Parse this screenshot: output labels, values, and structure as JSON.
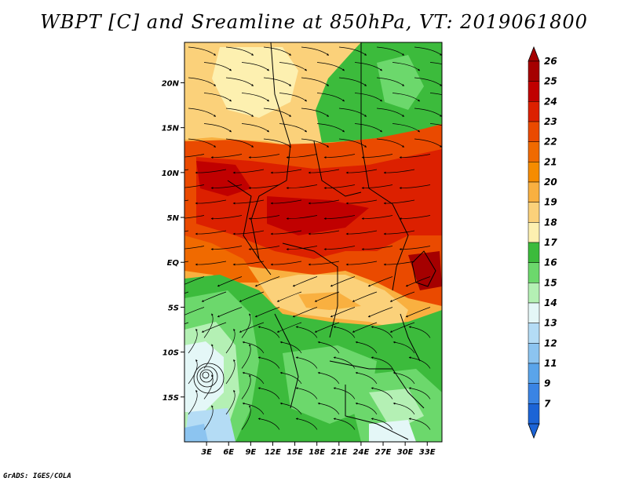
{
  "title": "WBPT [C] and Sreamline at 850hPa, VT: 2019061800",
  "footer": "GrADS: IGES/COLA",
  "map": {
    "lon_range": [
      0,
      35
    ],
    "lat_range": [
      -20,
      24.5
    ],
    "lat_ticks": [
      "20N",
      "15N",
      "10N",
      "5N",
      "EQ",
      "5S",
      "10S",
      "15S"
    ],
    "lat_values": [
      20,
      15,
      10,
      5,
      0,
      -5,
      -10,
      -15
    ],
    "lon_ticks": [
      "3E",
      "6E",
      "9E",
      "12E",
      "15E",
      "18E",
      "21E",
      "24E",
      "27E",
      "30E",
      "33E"
    ],
    "lon_values": [
      3,
      6,
      9,
      12,
      15,
      18,
      21,
      24,
      27,
      30,
      33
    ],
    "regions": [
      {
        "name": "northwest-cool",
        "value": 19
      },
      {
        "name": "northeast-green",
        "value": 17
      },
      {
        "name": "central-warm-band",
        "value": 24
      },
      {
        "name": "south-green",
        "value": 17
      },
      {
        "name": "southwest-ocean-blue",
        "value": 14
      },
      {
        "name": "cyclone-center",
        "value": 13
      }
    ]
  },
  "colorbar": {
    "levels": [
      "26",
      "25",
      "24",
      "23",
      "22",
      "21",
      "20",
      "19",
      "18",
      "17",
      "16",
      "15",
      "14",
      "13",
      "12",
      "11",
      "9",
      "7"
    ],
    "colors": [
      "#a50000",
      "#c00000",
      "#dc2000",
      "#ea4a00",
      "#f06a00",
      "#f58c00",
      "#f9b040",
      "#fbd17a",
      "#fdf0b0",
      "#3cbb3c",
      "#6cd86c",
      "#b4f0b4",
      "#e4f7f7",
      "#b4dcf5",
      "#8cc4f0",
      "#5aa4ea",
      "#3a84e4",
      "#1c64d6"
    ]
  }
}
